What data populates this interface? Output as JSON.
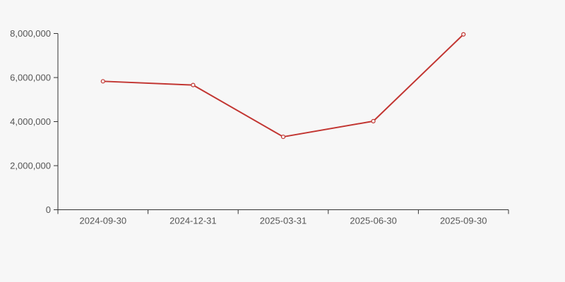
{
  "page": {
    "background_color": "#f7f7f7"
  },
  "chart_data": {
    "type": "line",
    "title": "",
    "xlabel": "",
    "ylabel": "",
    "categories": [
      "2024-09-30",
      "2024-12-31",
      "2025-03-31",
      "2025-06-30",
      "2025-09-30"
    ],
    "values": [
      5830000,
      5660000,
      3310000,
      4020000,
      7960000
    ],
    "ylim": [
      0,
      8000000
    ],
    "y_ticks": [
      0,
      2000000,
      4000000,
      6000000,
      8000000
    ],
    "y_tick_labels": [
      "0",
      "2,000,000",
      "4,000,000",
      "6,000,000",
      "8,000,000"
    ],
    "grid": false,
    "legend": "none",
    "line_color": "#c23531",
    "axis_color": "#333333",
    "label_color": "#555555",
    "marker_style": "open-circle",
    "marker_fill": "#f7f7f7"
  }
}
